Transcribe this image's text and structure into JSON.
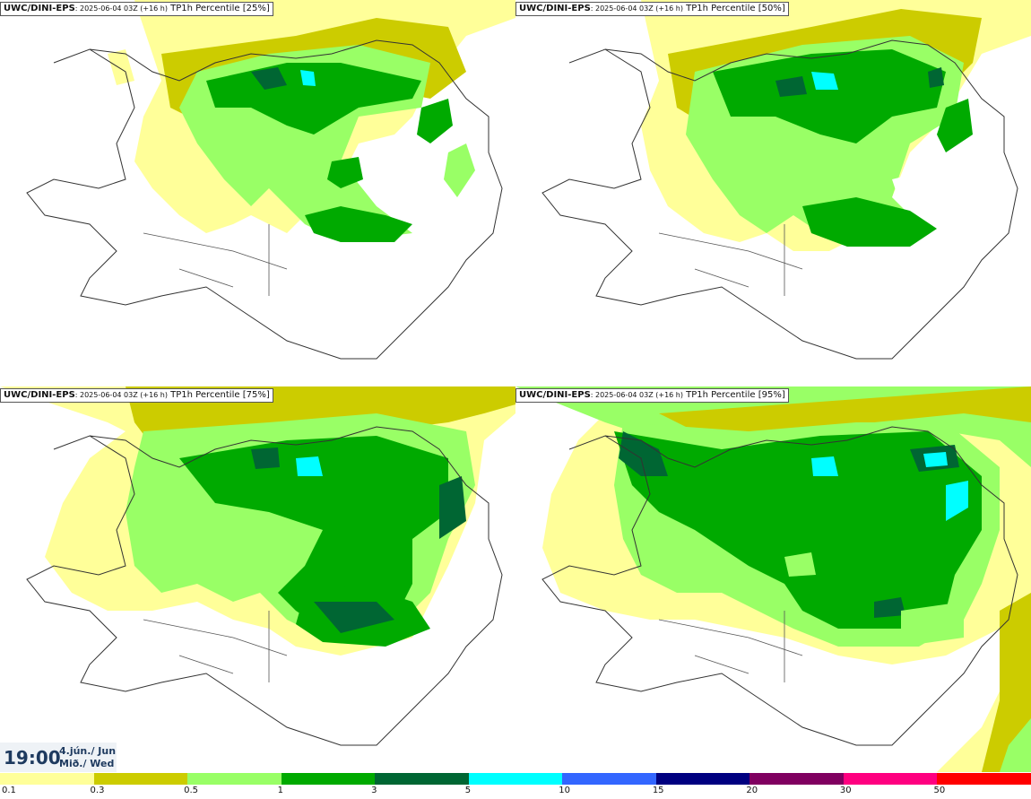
{
  "panels": [
    {
      "model": "UWC/DINI-EPS",
      "run": ": 2025-06-04 03Z (+16 h)",
      "field": " TP1h Percentile [25%]"
    },
    {
      "model": "UWC/DINI-EPS",
      "run": ": 2025-06-04 03Z (+16 h)",
      "field": " TP1h Percentile [50%]"
    },
    {
      "model": "UWC/DINI-EPS",
      "run": ": 2025-06-04 03Z (+16 h)",
      "field": " TP1h Percentile [75%]"
    },
    {
      "model": "UWC/DINI-EPS",
      "run": ": 2025-06-04 03Z (+16 h)",
      "field": " TP1h Percentile [95%]"
    }
  ],
  "valid": {
    "time": "19:00",
    "date_line1": "4.jún./ Jun",
    "date_line2": "Mið./ Wed"
  },
  "legend": {
    "labels": [
      "0.1",
      "0.3",
      "0.5",
      "1",
      "3",
      "5",
      "10",
      "15",
      "20",
      "30",
      "50"
    ],
    "colors": [
      "#ffff99",
      "#cccc00",
      "#99ff66",
      "#00aa00",
      "#006633",
      "#00ffff",
      "#3366ff",
      "#000080",
      "#800060",
      "#ff0080",
      "#ff0000"
    ]
  }
}
